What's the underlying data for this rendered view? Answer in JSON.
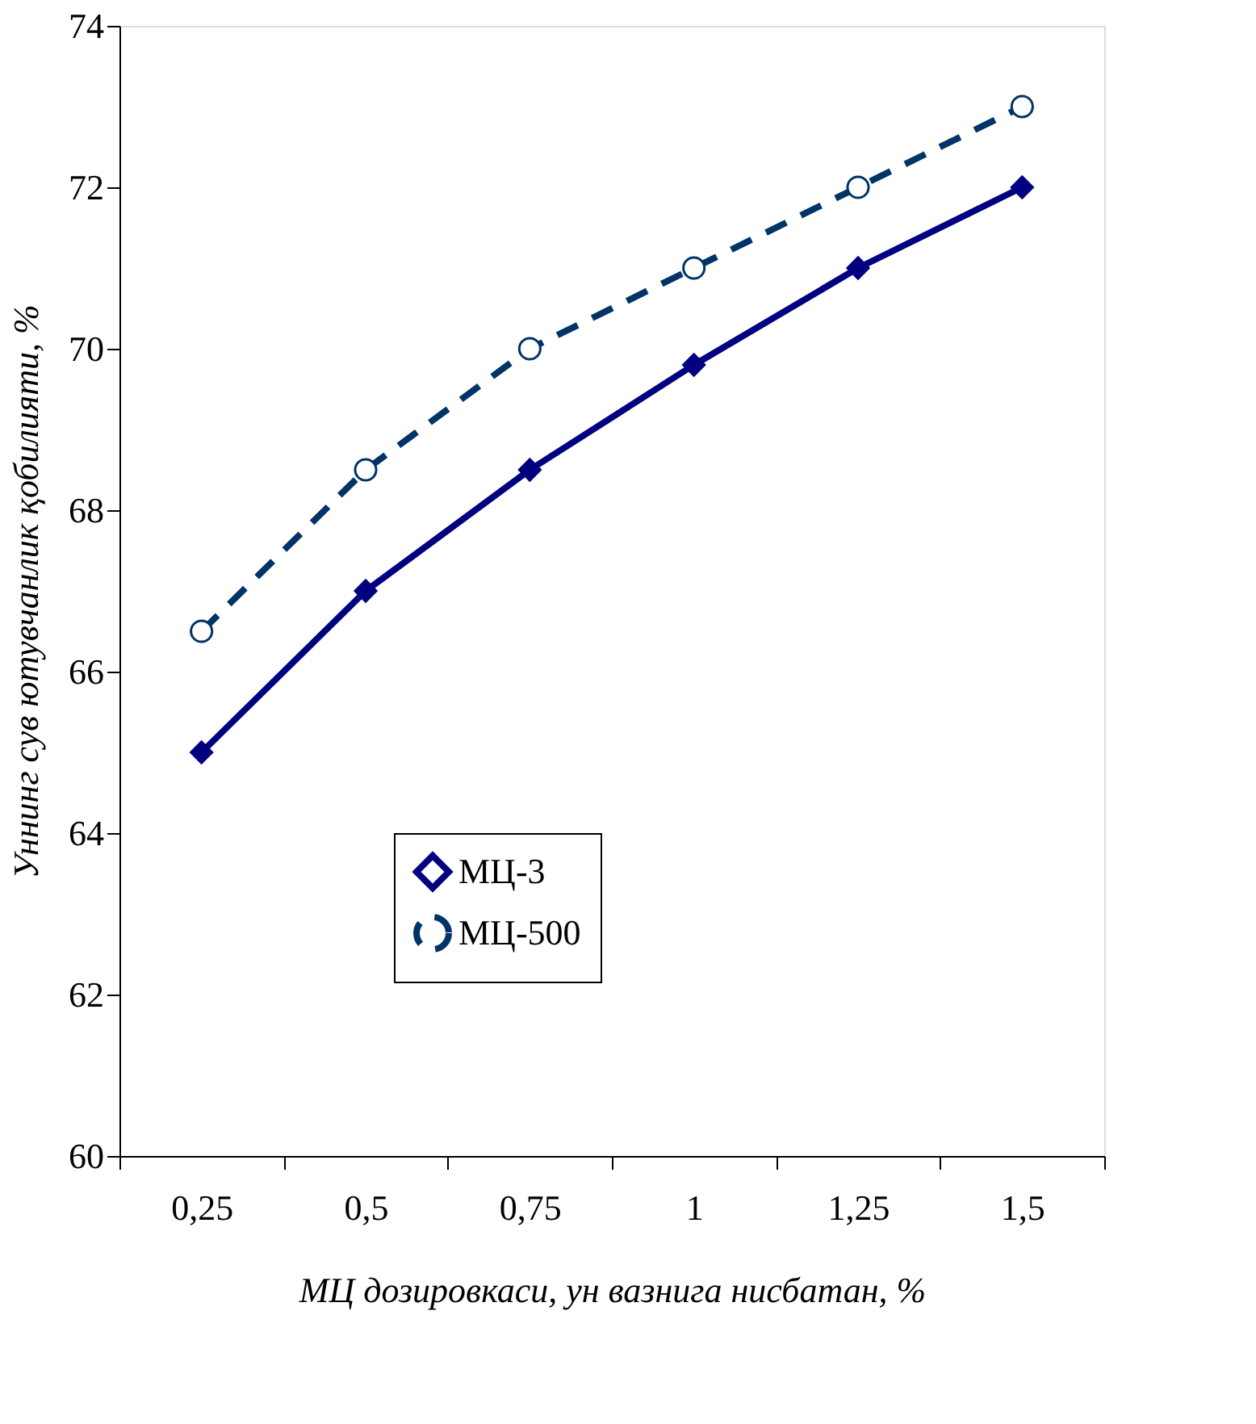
{
  "chart_data": {
    "type": "line",
    "xlabel": "МЦ дозировкаси, ун вазнига нисбатан, %",
    "ylabel": "Уннинг сув ютувчанлик қобилияти, %",
    "categories": [
      "0,25",
      "0,5",
      "0,75",
      "1",
      "1,25",
      "1,5"
    ],
    "series": [
      {
        "name": "МЦ-3",
        "color": "#000080",
        "marker": "diamond",
        "line_style": "solid",
        "values": [
          65,
          67,
          68.5,
          69.8,
          71,
          72
        ]
      },
      {
        "name": "МЦ-500",
        "color": "#003366",
        "marker": "circle",
        "line_style": "dashed",
        "values": [
          66.5,
          68.5,
          70,
          71,
          72,
          73
        ]
      }
    ],
    "ylim": [
      60,
      74
    ],
    "yticks": [
      60,
      62,
      64,
      66,
      68,
      70,
      72,
      74
    ],
    "grid": false,
    "legend": "bottom"
  }
}
